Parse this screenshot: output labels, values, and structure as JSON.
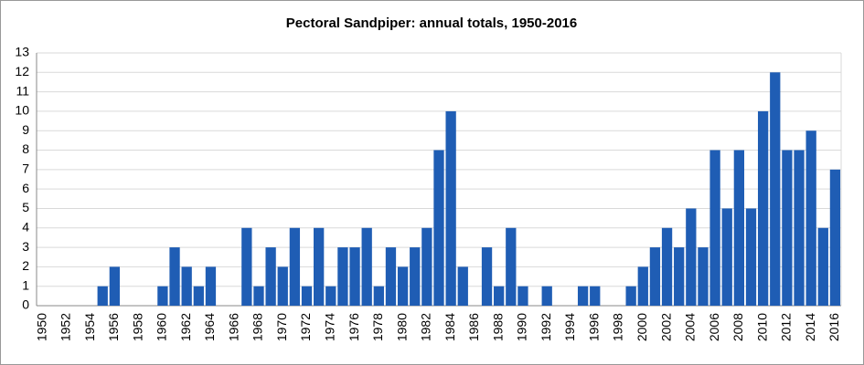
{
  "chart_data": {
    "type": "bar",
    "title": "Pectoral Sandpiper: annual totals, 1950-2016",
    "categories": [
      "1950",
      null,
      "1952",
      null,
      "1954",
      null,
      "1956",
      null,
      "1958",
      null,
      "1960",
      null,
      "1962",
      null,
      "1964",
      null,
      "1966",
      null,
      "1968",
      null,
      "1970",
      null,
      "1972",
      null,
      "1974",
      null,
      "1976",
      null,
      "1978",
      null,
      "1980",
      null,
      "1982",
      null,
      "1984",
      null,
      "1986",
      null,
      "1988",
      null,
      "1990",
      null,
      "1992",
      null,
      "1994",
      null,
      "1996",
      null,
      "1998",
      null,
      "2000",
      null,
      "2002",
      null,
      "2004",
      null,
      "2006",
      null,
      "2008",
      null,
      "2010",
      null,
      "2012",
      null,
      "2014",
      null,
      "2016"
    ],
    "values": [
      0,
      0,
      0,
      0,
      0,
      1,
      2,
      0,
      0,
      0,
      1,
      3,
      2,
      1,
      2,
      0,
      0,
      4,
      1,
      3,
      2,
      4,
      1,
      4,
      1,
      3,
      3,
      4,
      1,
      3,
      2,
      3,
      4,
      8,
      10,
      2,
      0,
      3,
      1,
      4,
      1,
      0,
      1,
      0,
      0,
      1,
      1,
      0,
      0,
      1,
      2,
      3,
      4,
      3,
      5,
      3,
      8,
      5,
      8,
      5,
      10,
      12,
      8,
      8,
      9,
      4,
      7
    ],
    "color": "#1f5db4",
    "ylim": [
      0,
      13
    ],
    "yticks": [
      0,
      1,
      2,
      3,
      4,
      5,
      6,
      7,
      8,
      9,
      10,
      11,
      12,
      13
    ],
    "grid": true
  }
}
